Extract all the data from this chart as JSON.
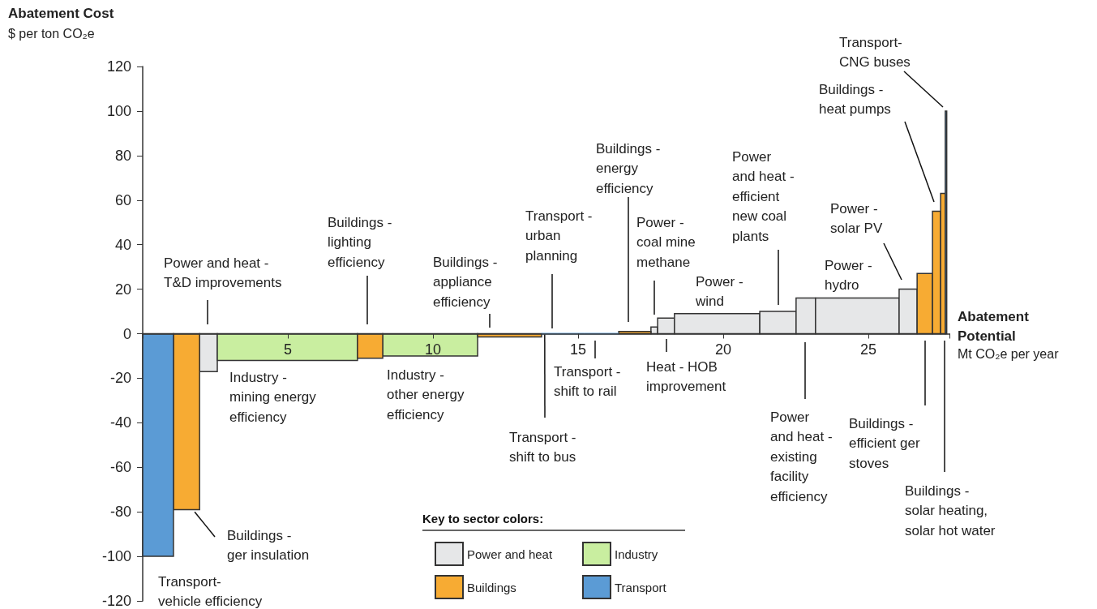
{
  "chart_data": {
    "type": "histogram",
    "ylabel": "Abatement Cost\n$ per ton CO₂e",
    "xlabel": "Abatement Potential\nMt CO₂e per year",
    "legend_title": "Key to sector colors:",
    "bins": [
      0,
      1.06,
      1.96,
      2.57,
      7.4,
      8.27,
      11.54,
      13.74,
      14.3,
      15.2,
      16.4,
      17.51,
      17.74,
      18.32,
      21.26,
      22.51,
      23.18,
      26.06,
      26.68,
      27.21,
      27.49,
      27.65,
      27.7
    ],
    "series": [
      {
        "name": "Power and heat",
        "color": "#e6e7e8",
        "values": [
          null,
          null,
          -17,
          null,
          null,
          null,
          null,
          null,
          null,
          null,
          null,
          3,
          7,
          9,
          10,
          16,
          16,
          20,
          null,
          null,
          null,
          null
        ]
      },
      {
        "name": "Industry",
        "color": "#c9eea0",
        "values": [
          null,
          null,
          null,
          -12,
          null,
          -10,
          null,
          null,
          null,
          null,
          null,
          null,
          null,
          null,
          null,
          null,
          null,
          null,
          null,
          null,
          null,
          null
        ]
      },
      {
        "name": "Buildings",
        "color": "#f7ab33",
        "values": [
          null,
          -79,
          null,
          null,
          -11,
          null,
          -1.5,
          null,
          null,
          null,
          1,
          null,
          null,
          null,
          null,
          null,
          null,
          null,
          27,
          55,
          63,
          null
        ]
      },
      {
        "name": "Transport",
        "color": "#5b9bd5",
        "values": [
          -100,
          null,
          null,
          null,
          null,
          null,
          null,
          0,
          0,
          0,
          null,
          null,
          null,
          null,
          null,
          null,
          null,
          null,
          null,
          null,
          null,
          100
        ]
      }
    ],
    "xlim": [
      0,
      27.8
    ],
    "xticks": [
      5,
      10,
      15,
      20,
      25
    ],
    "ylim": [
      -120,
      120
    ],
    "yticks": [
      -120,
      -100,
      -80,
      -60,
      -40,
      -20,
      0,
      20,
      40,
      60,
      80,
      100,
      120
    ],
    "grid": false,
    "legend": "bottom",
    "annotations": [
      "Transport-\nvehicle efficiency",
      {
        "text": "Buildings -\nger insulation",
        "x": 1.79,
        "y": -80
      },
      "Power and heat -\nT&D improvements",
      "Industry -\nmining energy\nefficiency",
      "Buildings -\nlighting\nefficiency",
      "Industry -\nother energy\nefficiency",
      "Buildings -\nappliance\nefficiency",
      "Transport -\nurban\nplanning",
      {
        "text": "Transport -\nshift to bus",
        "x": 13.85,
        "y": 0
      },
      "Transport -\nshift to rail",
      "Buildings -\nenergy\nefficiency",
      "Power -\ncoal mine\nmethane",
      "Heat - HOB\nimprovement",
      "Power -\nwind",
      "Power\nand heat -\nefficient\nnew coal\nplants",
      "Power\nand heat -\nexisting\nfacility\nefficiency",
      "Power -\nhydro",
      "Power -\nsolar PV",
      "Buildings -\nefficient ger\nstoves",
      "Buildings -\nheat pumps",
      "Buildings -\nsolar heating,\nsolar hot water",
      "Transport-\nCNG buses"
    ]
  }
}
